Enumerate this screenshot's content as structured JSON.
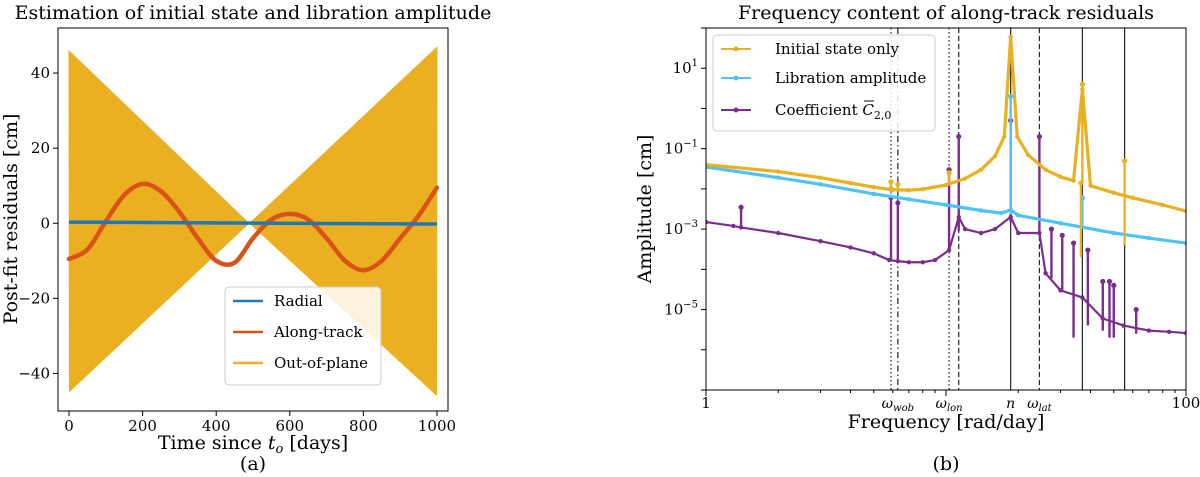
{
  "figure": {
    "caption_a": "(a)",
    "caption_b": "(b)"
  },
  "chart_data": [
    {
      "type": "line",
      "title": "Estimation of initial state and libration amplitude",
      "xlabel": "Time since ",
      "xlabel_sym": "t",
      "xlabel_sub": "o",
      "xlabel_tail": " [days]",
      "ylabel": "Post-fit residuals [cm]",
      "xlim": [
        -30,
        1030
      ],
      "ylim": [
        -50,
        52
      ],
      "xticks": [
        0,
        200,
        400,
        600,
        800,
        1000
      ],
      "yticks": [
        -40,
        -20,
        0,
        20,
        40
      ],
      "legend_position": "lower-center",
      "series": [
        {
          "name": "Radial",
          "color": "#1f77b4",
          "x": [
            0,
            1000
          ],
          "y": [
            0.3,
            -0.2
          ]
        },
        {
          "name": "Along-track",
          "color": "#d95319",
          "x": [
            0,
            50,
            100,
            150,
            200,
            250,
            300,
            350,
            400,
            450,
            500,
            550,
            600,
            650,
            700,
            750,
            800,
            850,
            900,
            950,
            1000
          ],
          "y": [
            -9.5,
            -7,
            0.5,
            7.5,
            10.5,
            8.5,
            3.0,
            -4.0,
            -10.0,
            -10.5,
            -4.0,
            1.0,
            2.5,
            1.0,
            -4.0,
            -10.0,
            -12.5,
            -10.0,
            -4.0,
            2.0,
            9.5
          ]
        },
        {
          "name": "Out-of-plane",
          "color": "#ebb021",
          "envelope_x": [
            0,
            490,
            1000
          ],
          "envelope_upper": [
            46,
            0,
            47
          ],
          "envelope_lower": [
            -45,
            0,
            -46
          ]
        }
      ]
    },
    {
      "type": "line",
      "title": "Frequency content of along-track residuals",
      "xlabel": "Frequency [rad/day]",
      "ylabel": "Amplitude [cm]",
      "xscale": "log",
      "yscale": "log",
      "xlim": [
        1,
        100
      ],
      "ylim": [
        1e-07,
        100
      ],
      "xtick_labels": [
        {
          "v": 1,
          "t": "1"
        },
        {
          "v": 100,
          "t": "100"
        }
      ],
      "ytick_labels": [
        {
          "v": 10,
          "b": "10",
          "e": "1"
        },
        {
          "v": 0.1,
          "b": "10",
          "e": "−1"
        },
        {
          "v": 0.001,
          "b": "10",
          "e": "−3"
        },
        {
          "v": 1e-05,
          "b": "10",
          "e": "−5"
        }
      ],
      "legend_position": "top-left",
      "vlines": [
        {
          "x": 5.9,
          "style": "dotted",
          "label_main": "",
          "label_sub": ""
        },
        {
          "x": 6.3,
          "style": "dashdot",
          "label_main": "ω",
          "label_sub": "wob"
        },
        {
          "x": 10.3,
          "style": "dotted",
          "label_main": "ω",
          "label_sub": "lon"
        },
        {
          "x": 11.3,
          "style": "dashed",
          "label_main": "",
          "label_sub": ""
        },
        {
          "x": 18.6,
          "style": "solid",
          "label_main": "n",
          "label_sub": ""
        },
        {
          "x": 24.5,
          "style": "dashed",
          "label_main": "ω",
          "label_sub": "lat"
        },
        {
          "x": 37.0,
          "style": "solid",
          "label_main": "",
          "label_sub": ""
        },
        {
          "x": 55.5,
          "style": "solid",
          "label_main": "",
          "label_sub": ""
        }
      ],
      "series": [
        {
          "name": "Initial state only",
          "color": "#ebb021",
          "x": [
            1,
            2,
            3,
            4,
            5,
            6,
            7,
            8,
            10,
            12,
            14,
            16,
            17.5,
            18.6,
            19.8,
            22,
            26,
            30,
            34,
            37,
            40,
            50,
            60,
            80,
            100
          ],
          "y": [
            0.04,
            0.027,
            0.019,
            0.014,
            0.011,
            0.0095,
            0.0093,
            0.0098,
            0.0125,
            0.018,
            0.03,
            0.065,
            0.2,
            60,
            0.2,
            0.07,
            0.03,
            0.02,
            0.016,
            3.0,
            0.012,
            0.008,
            0.006,
            0.004,
            0.0028
          ],
          "spikes": [
            {
              "x": 5.9,
              "base": 0.0095,
              "peak": 0.015
            },
            {
              "x": 6.3,
              "base": 0.0095,
              "peak": 0.013
            },
            {
              "x": 10.3,
              "base": 0.013,
              "peak": 0.025
            },
            {
              "x": 37.0,
              "base": 0.014,
              "peak": 4.0
            },
            {
              "x": 36.5,
              "base": 0.0002,
              "peak": 0.014
            },
            {
              "x": 55.5,
              "base": 0.0004,
              "peak": 0.05
            }
          ]
        },
        {
          "name": "Libration amplitude",
          "color": "#4fc3f7",
          "x": [
            1,
            2,
            3,
            5,
            7,
            10,
            14,
            17,
            18.6,
            20,
            30,
            50,
            70,
            100
          ],
          "y": [
            0.035,
            0.019,
            0.013,
            0.0075,
            0.0055,
            0.004,
            0.0029,
            0.0025,
            0.003,
            0.0022,
            0.0014,
            0.0008,
            0.0006,
            0.00045
          ],
          "spikes": [
            {
              "x": 5.9,
              "base": 0.0075,
              "peak": 0.01
            },
            {
              "x": 18.6,
              "base": 0.0023,
              "peak": 2.0
            },
            {
              "x": 37.0,
              "base": 0.0012,
              "peak": 0.006
            }
          ]
        },
        {
          "name": "Coefficient ",
          "name_sym": "C",
          "name_sub": "2,0",
          "color": "#7b2d8e",
          "x": [
            1,
            1.3,
            1.4,
            2,
            3,
            4,
            5,
            5.8,
            6.3,
            7,
            8,
            9,
            10.3,
            11.3,
            12,
            14,
            16,
            18.6,
            20,
            24.5,
            26,
            30,
            37,
            45,
            55,
            70,
            85,
            100
          ],
          "y": [
            0.0015,
            0.0012,
            0.0011,
            0.0008,
            0.0005,
            0.00035,
            0.00025,
            0.00017,
            0.00016,
            0.00015,
            0.00015,
            0.00017,
            0.0003,
            0.002,
            0.001,
            0.0008,
            0.001,
            0.002,
            0.0008,
            0.0008,
            8e-05,
            3e-05,
            2e-05,
            6e-06,
            4e-06,
            3e-06,
            2.8e-06,
            2.6e-06
          ],
          "spikes": [
            {
              "x": 1.4,
              "base": 0.0012,
              "peak": 0.0035
            },
            {
              "x": 5.9,
              "base": 0.00016,
              "peak": 0.006
            },
            {
              "x": 6.3,
              "base": 0.00016,
              "peak": 0.0045
            },
            {
              "x": 10.3,
              "base": 0.0003,
              "peak": 0.03
            },
            {
              "x": 11.3,
              "base": 0.0009,
              "peak": 0.2
            },
            {
              "x": 18.6,
              "base": 0.0015,
              "peak": 0.5
            },
            {
              "x": 24.5,
              "base": 0.0008,
              "peak": 0.2
            },
            {
              "x": 27.5,
              "base": 6e-05,
              "peak": 0.001
            },
            {
              "x": 30.5,
              "base": 3e-05,
              "peak": 0.0007
            },
            {
              "x": 34.0,
              "base": 2e-06,
              "peak": 0.00045
            },
            {
              "x": 39.0,
              "base": 4e-06,
              "peak": 0.0003
            },
            {
              "x": 45.0,
              "base": 3e-06,
              "peak": 5e-05
            },
            {
              "x": 48.0,
              "base": 2e-06,
              "peak": 5e-05
            },
            {
              "x": 50.0,
              "base": 2e-06,
              "peak": 4e-05
            },
            {
              "x": 62.0,
              "base": 2.5e-06,
              "peak": 1e-05
            }
          ]
        }
      ]
    }
  ]
}
